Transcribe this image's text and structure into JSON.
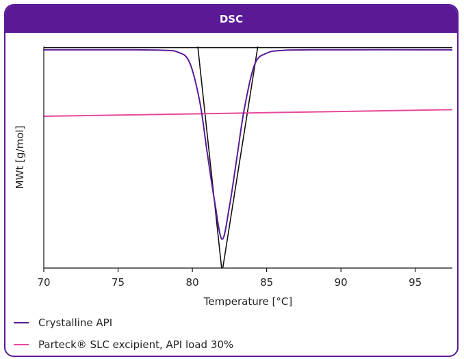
{
  "chart_data": {
    "type": "line",
    "title": "DSC",
    "xlabel": "Temperature [°C]",
    "ylabel": "MWt [g/mol]",
    "xlim": [
      70,
      97.5
    ],
    "ylim": [
      0,
      1
    ],
    "xticks": [
      70,
      75,
      80,
      85,
      90,
      95
    ],
    "grid": false,
    "legend_position": "bottom-left",
    "series": [
      {
        "name": "Crystalline API",
        "color": "#5a1a96",
        "x": [
          70,
          76,
          78,
          79,
          79.8,
          80.5,
          81.0,
          81.5,
          82.0,
          82.5,
          83.0,
          83.5,
          84.2,
          85,
          86,
          88,
          97.5
        ],
        "y": [
          0.985,
          0.985,
          0.983,
          0.975,
          0.93,
          0.75,
          0.52,
          0.3,
          0.13,
          0.28,
          0.5,
          0.72,
          0.92,
          0.97,
          0.982,
          0.985,
          0.985
        ]
      },
      {
        "name": "Parteck® SLC excipient, API load 30%",
        "color": "#e8479a",
        "x": [
          70,
          97.5
        ],
        "y": [
          0.685,
          0.715
        ]
      }
    ],
    "construction_lines": [
      {
        "color": "#111111",
        "x": [
          70,
          97.5
        ],
        "y": [
          0.995,
          0.995
        ]
      },
      {
        "color": "#111111",
        "x": [
          80.3,
          82.0
        ],
        "y": [
          1.04,
          -0.02
        ]
      },
      {
        "color": "#111111",
        "x": [
          82.0,
          84.5
        ],
        "y": [
          -0.02,
          1.04
        ]
      }
    ]
  }
}
